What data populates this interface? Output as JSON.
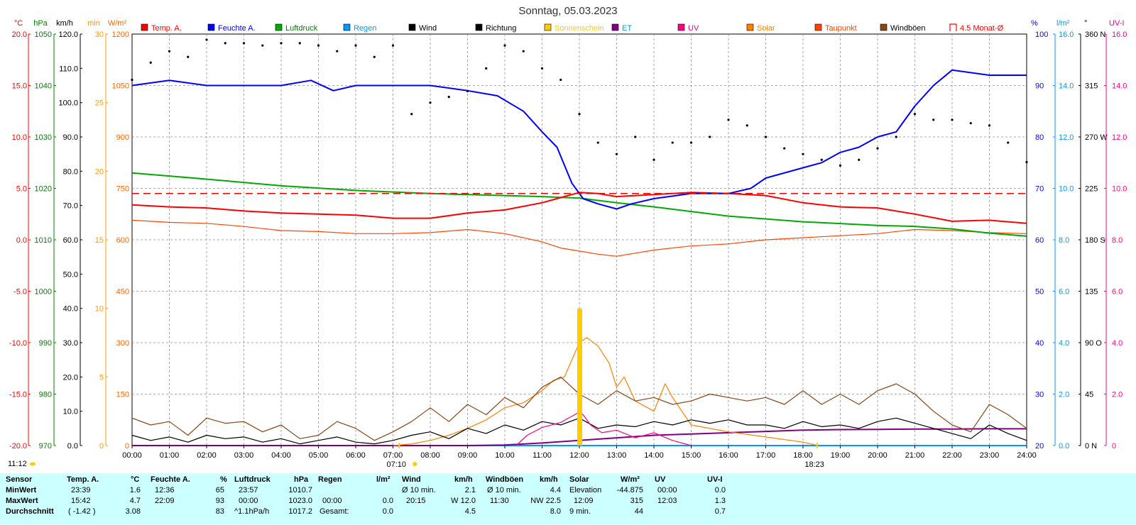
{
  "chart_data": {
    "type": "line",
    "title": "Sonntag, 05.03.2023",
    "x_ticks": [
      "00:00",
      "01:00",
      "02:00",
      "03:00",
      "04:00",
      "05:00",
      "06:00",
      "07:00",
      "08:00",
      "09:00",
      "10:00",
      "11:00",
      "12:00",
      "13:00",
      "14:00",
      "15:00",
      "16:00",
      "17:00",
      "18:00",
      "19:00",
      "20:00",
      "21:00",
      "22:00",
      "23:00",
      "24:00"
    ],
    "x_range_hours": [
      0,
      24
    ],
    "grid": true,
    "legend_position": "top",
    "sunrise_label": "07:10",
    "sunset_label": "18:23",
    "left_corner_time": "11:12",
    "axes": [
      {
        "unit": "°C",
        "color": "#ff0000",
        "range": [
          -20,
          20
        ],
        "ticks": [
          "20.0",
          "15.0",
          "10.0",
          "5.0",
          "0.0",
          "-5.0",
          "-10.0",
          "-15.0",
          "-20.0"
        ]
      },
      {
        "unit": "hPa",
        "color": "#008000",
        "range": [
          970,
          1050
        ],
        "ticks": [
          "1050",
          "1040",
          "1030",
          "1020",
          "1010",
          "1000",
          "990",
          "980",
          "970"
        ]
      },
      {
        "unit": "km/h",
        "color": "#000000",
        "range": [
          0,
          120
        ],
        "ticks": [
          "120.0",
          "110.0",
          "100.0",
          "90.0",
          "80.0",
          "70.0",
          "60.0",
          "50.0",
          "40.0",
          "30.0",
          "20.0",
          "10.0",
          "0.0"
        ]
      },
      {
        "unit": "min",
        "color": "#ff9900",
        "range": [
          0,
          30
        ],
        "ticks": [
          "30",
          "25",
          "20",
          "15",
          "10",
          "5",
          "0"
        ]
      },
      {
        "unit": "W/m²",
        "color": "#ff6600",
        "range": [
          0,
          1200
        ],
        "ticks": [
          "1200",
          "1050",
          "900",
          "750",
          "600",
          "450",
          "300",
          "150",
          "0"
        ]
      },
      {
        "unit": "%",
        "color": "#0000ff",
        "range": [
          20,
          100
        ],
        "ticks": [
          "100",
          "90",
          "80",
          "70",
          "60",
          "50",
          "40",
          "30",
          "20"
        ]
      },
      {
        "unit": "l/m²",
        "color": "#0099ff",
        "range": [
          0,
          16
        ],
        "ticks": [
          "16.0",
          "14.0",
          "12.0",
          "10.0",
          "8.0",
          "6.0",
          "4.0",
          "2.0",
          "0.0"
        ]
      },
      {
        "unit": "°",
        "color": "#000000",
        "range": [
          0,
          360
        ],
        "ticks": [
          "360 N",
          "315",
          "270 W",
          "225",
          "180 S",
          "135",
          "90 O",
          "45",
          "0 N"
        ]
      },
      {
        "unit": "UV-I",
        "color": "#ff0080",
        "range": [
          0,
          16
        ],
        "ticks": [
          "16.0",
          "14.0",
          "12.0",
          "10.0",
          "8.0",
          "6.0",
          "4.0",
          "2.0",
          "0"
        ]
      }
    ],
    "legend": [
      {
        "name": "Temp. A.",
        "color": "#ff0000",
        "text_color": "#ff0000"
      },
      {
        "name": "Feuchte A.",
        "color": "#0000ff",
        "text_color": "#0000ff"
      },
      {
        "name": "Luftdruck",
        "color": "#00aa00",
        "text_color": "#008000"
      },
      {
        "name": "Regen",
        "color": "#0099ff",
        "text_color": "#0099ff"
      },
      {
        "name": "Wind",
        "color": "#000000",
        "text_color": "#000000"
      },
      {
        "name": "Richtung",
        "color": "#000000",
        "text_color": "#000000"
      },
      {
        "name": "Sonnenschein",
        "color": "#ffcc00",
        "text_color": "#ffcc00"
      },
      {
        "name": "ET",
        "color": "#800080",
        "text_color": "#0099ff"
      },
      {
        "name": "UV",
        "color": "#ff0080",
        "text_color": "#ff0080"
      },
      {
        "name": "Solar",
        "color": "#ff8000",
        "text_color": "#ff8000"
      },
      {
        "name": "Taupunkt",
        "color": "#ff4400",
        "text_color": "#ff4400"
      },
      {
        "name": "Windböen",
        "color": "#8b4513",
        "text_color": "#000000"
      },
      {
        "name": "4.5 Monat-Ø",
        "color": "#ff0000",
        "text_color": "#ff0000"
      }
    ],
    "series": [
      {
        "name": "Temp. A.",
        "unit": "°C",
        "color": "#ff0000",
        "x": [
          0,
          1,
          2,
          3,
          4,
          5,
          6,
          7,
          8,
          9,
          10,
          11,
          11.5,
          12,
          12.5,
          13,
          14,
          15,
          16,
          17,
          18,
          19,
          20,
          21,
          22,
          23,
          24
        ],
        "y": [
          3.4,
          3.2,
          3.1,
          2.8,
          2.6,
          2.5,
          2.4,
          2.1,
          2.1,
          2.6,
          2.9,
          3.6,
          4.1,
          4.6,
          4.5,
          4.2,
          4.4,
          4.6,
          4.5,
          4.3,
          3.6,
          3.2,
          3.1,
          2.5,
          1.8,
          1.9,
          1.6
        ]
      },
      {
        "name": "Feuchte A.",
        "unit": "%",
        "color": "#0000ff",
        "x": [
          0,
          1,
          2,
          3,
          4,
          4.8,
          5.4,
          6,
          7,
          8,
          9,
          9.8,
          10.5,
          11,
          11.4,
          11.8,
          12.1,
          12.5,
          13,
          13.4,
          14,
          15,
          15.5,
          16,
          16.6,
          17,
          18,
          18.5,
          19,
          19.5,
          20,
          20.5,
          21,
          21.5,
          22,
          23,
          24
        ],
        "y": [
          90,
          91,
          90,
          90,
          90,
          91,
          89,
          90,
          90,
          90,
          89,
          88,
          85,
          81,
          78,
          71,
          68,
          67,
          66,
          67,
          68,
          69,
          69,
          69,
          70,
          72,
          74,
          75,
          77,
          78,
          80,
          81,
          86,
          90,
          93,
          92,
          92
        ]
      },
      {
        "name": "Luftdruck",
        "unit": "hPa",
        "color": "#00aa00",
        "x": [
          0,
          2,
          4,
          6,
          8,
          10,
          11,
          12,
          13,
          14,
          16,
          18,
          20,
          21,
          22,
          23,
          24
        ],
        "y": [
          1023.0,
          1021.8,
          1020.5,
          1019.6,
          1019.0,
          1018.6,
          1018.4,
          1018.1,
          1017.2,
          1016.4,
          1014.6,
          1013.5,
          1012.8,
          1012.6,
          1012.1,
          1011.3,
          1010.7
        ]
      },
      {
        "name": "Taupunkt",
        "unit": "°C",
        "color": "#ff4400",
        "x": [
          0,
          1,
          2,
          3,
          4,
          5,
          6,
          7,
          8,
          9,
          10,
          11,
          11.5,
          12,
          12.5,
          13,
          14,
          15,
          16,
          17,
          18,
          19,
          20,
          21,
          22,
          23,
          24
        ],
        "y": [
          1.9,
          1.7,
          1.6,
          1.3,
          0.9,
          0.8,
          0.6,
          0.6,
          0.7,
          1.0,
          0.6,
          -0.2,
          -0.8,
          -1.1,
          -1.4,
          -1.6,
          -1.0,
          -0.6,
          -0.4,
          0.0,
          0.2,
          0.4,
          0.6,
          1.0,
          0.9,
          0.7,
          0.6
        ]
      },
      {
        "name": "Solar",
        "unit": "W/m²",
        "color": "#ff8000",
        "x": [
          7.0,
          7.5,
          8,
          8.5,
          9,
          9.5,
          10,
          10.5,
          11,
          11.3,
          11.6,
          12,
          12.2,
          12.5,
          12.8,
          13.0,
          13.2,
          13.5,
          14,
          14.3,
          14.5,
          15,
          16,
          17,
          18,
          18.4
        ],
        "y": [
          0,
          5,
          15,
          30,
          50,
          75,
          110,
          125,
          160,
          190,
          200,
          300,
          315,
          290,
          240,
          170,
          200,
          130,
          100,
          180,
          140,
          60,
          40,
          25,
          10,
          0
        ]
      },
      {
        "name": "Wind",
        "unit": "km/h",
        "color": "#000000",
        "x": [
          0,
          0.5,
          1,
          1.5,
          2,
          2.5,
          3,
          3.5,
          4,
          4.5,
          5,
          5.5,
          6,
          6.5,
          7,
          7.5,
          8,
          8.5,
          9,
          9.5,
          10,
          10.5,
          11,
          11.5,
          12,
          12.5,
          13,
          13.5,
          14,
          14.5,
          15,
          15.5,
          16,
          16.5,
          17,
          17.5,
          18,
          18.5,
          19,
          19.5,
          20,
          20.5,
          21,
          21.5,
          22,
          22.5,
          23,
          23.5,
          24
        ],
        "y": [
          3.0,
          1.5,
          2.5,
          1.0,
          3.0,
          2.0,
          2.5,
          1.0,
          2.0,
          0.5,
          1.5,
          2.5,
          1.0,
          0.5,
          1.5,
          3.0,
          4.0,
          2.0,
          5.0,
          3.5,
          6.0,
          4.5,
          7.0,
          6.0,
          8.0,
          5.0,
          6.0,
          5.5,
          7.0,
          6.0,
          7.5,
          6.5,
          7.5,
          6.0,
          6.0,
          5.0,
          7.0,
          5.5,
          6.0,
          5.0,
          7.0,
          8.0,
          6.5,
          5.0,
          3.5,
          2.0,
          6.0,
          3.5,
          1.5
        ]
      },
      {
        "name": "Windböen",
        "unit": "km/h",
        "color": "#8b4513",
        "x": [
          0,
          0.5,
          1,
          1.5,
          2,
          2.5,
          3,
          3.5,
          4,
          4.5,
          5,
          5.5,
          6,
          6.5,
          7,
          7.5,
          8,
          8.5,
          9,
          9.5,
          10,
          10.5,
          11,
          11.5,
          12,
          12.5,
          13,
          13.5,
          14,
          14.5,
          15,
          15.5,
          16,
          16.5,
          17,
          17.5,
          18,
          18.5,
          19,
          19.5,
          20,
          20.5,
          21,
          21.5,
          22,
          22.5,
          23,
          23.5,
          24
        ],
        "y": [
          8.0,
          6.0,
          7.0,
          3.0,
          8.0,
          6.5,
          7.0,
          4.0,
          6.0,
          2.0,
          3.0,
          7.0,
          5.0,
          1.5,
          4.0,
          7.0,
          11.0,
          7.0,
          12.0,
          9.0,
          14.0,
          11.0,
          17.0,
          20.0,
          15.0,
          12.0,
          16.0,
          13.0,
          14.0,
          12.0,
          13.0,
          15.0,
          14.0,
          13.0,
          14.0,
          12.0,
          16.0,
          12.0,
          15.0,
          12.0,
          16.0,
          18.0,
          15.0,
          10.0,
          6.0,
          4.0,
          12.0,
          9.0,
          5.0
        ]
      },
      {
        "name": "Richtung",
        "unit": "°",
        "color": "#000000",
        "style": "dots",
        "x": [
          0,
          0.5,
          1,
          1.5,
          2,
          2.5,
          3,
          3.5,
          4,
          4.5,
          5,
          5.5,
          6,
          6.5,
          7,
          7.5,
          8,
          8.5,
          9,
          9.5,
          10,
          10.5,
          11,
          11.5,
          12,
          12.5,
          13,
          13.5,
          14,
          14.5,
          15,
          15.5,
          16,
          16.5,
          17,
          17.5,
          18,
          18.5,
          19,
          19.5,
          20,
          20.5,
          21,
          21.5,
          22,
          22.5,
          23,
          23.5,
          24
        ],
        "y": [
          320,
          335,
          345,
          340,
          355,
          352,
          352,
          350,
          352,
          352,
          350,
          345,
          350,
          340,
          350,
          290,
          300,
          305,
          310,
          330,
          350,
          345,
          330,
          320,
          290,
          265,
          255,
          270,
          250,
          265,
          265,
          270,
          285,
          280,
          270,
          260,
          255,
          250,
          245,
          250,
          260,
          270,
          290,
          285,
          285,
          282,
          280,
          265,
          248
        ]
      },
      {
        "name": "ET",
        "unit": "l/m²",
        "color": "#800080",
        "x": [
          0,
          9,
          10,
          11,
          12,
          13,
          14,
          15,
          16,
          17,
          18,
          19,
          20,
          21,
          22,
          23,
          24
        ],
        "y": [
          0,
          0,
          0.02,
          0.1,
          0.2,
          0.3,
          0.4,
          0.45,
          0.5,
          0.55,
          0.6,
          0.62,
          0.63,
          0.64,
          0.64,
          0.65,
          0.65
        ]
      },
      {
        "name": "UV",
        "unit": "UV-I",
        "color": "#ff0080",
        "x": [
          10.3,
          10.6,
          11,
          11.5,
          12,
          12.1,
          12.3,
          12.6,
          13,
          13.5,
          14,
          14.5,
          15
        ],
        "y": [
          0,
          0.4,
          0.7,
          0.9,
          1.3,
          1.2,
          0.8,
          0.5,
          0.6,
          0.3,
          0.5,
          0.2,
          0
        ]
      },
      {
        "name": "Sonnenschein",
        "unit": "min",
        "color": "#ffcc00",
        "style": "bar",
        "x": [
          12.0
        ],
        "y": [
          10
        ]
      },
      {
        "name": "Regen",
        "unit": "l/m²",
        "color": "#0099ff",
        "x": [
          0,
          24
        ],
        "y": [
          0,
          0
        ]
      },
      {
        "name": "4.5 Monat-Ø",
        "unit": "°C",
        "color": "#ff0000",
        "style": "dashed",
        "x": [
          0,
          24
        ],
        "y": [
          4.5,
          4.5
        ]
      }
    ]
  },
  "stats": {
    "header": {
      "sensor": "Sensor",
      "temp": "Temp. A.",
      "temp_unit": "°C",
      "hum": "Feuchte A.",
      "hum_unit": "%",
      "press": "Luftdruck",
      "press_unit": "hPa",
      "rain": "Regen",
      "rain_unit": "l/m²",
      "wind": "Wind",
      "wind_unit": "km/h",
      "gust": "Windböen",
      "gust_unit": "km/h",
      "solar": "Solar",
      "solar_unit": "W/m²",
      "uv": "UV",
      "uvi": "UV-I"
    },
    "rows": [
      {
        "label": "MinWert",
        "temp_t": "23:39",
        "temp_v": "1.6",
        "hum_t": "12:36",
        "hum_v": "65",
        "press_t": "23:57",
        "press_v": "1010.7",
        "rain_t": "",
        "rain_v": "",
        "wind_t": "Ø 10 min.",
        "wind_v": "2.1",
        "gust_t": "Ø 10 min.",
        "gust_v": "4.4",
        "solar_t": "Elevation",
        "solar_v": "-44.875",
        "uv_t": "00:00",
        "uv_v": "0.0"
      },
      {
        "label": "MaxWert",
        "temp_t": "15:42",
        "temp_v": "4.7",
        "hum_t": "22:09",
        "hum_v": "93",
        "press_t": "00:00",
        "press_v": "1023.0",
        "rain_t": "00:00",
        "rain_v": "0.0",
        "wind_t": "20:15",
        "wind_v": "W 12.0",
        "gust_t": "11:30",
        "gust_v": "NW 22.5",
        "solar_t": "12:09",
        "solar_v": "315",
        "uv_t": "12:03",
        "uv_v": "1.3"
      },
      {
        "label": "Durchschnitt",
        "temp_t": "( -1.42 )",
        "temp_v": "3.08",
        "hum_t": "",
        "hum_v": "83",
        "press_t": "^1.1hPa/h",
        "press_v": "1017.2",
        "rain_t": "Gesamt:",
        "rain_v": "0.0",
        "wind_t": "",
        "wind_v": "4.5",
        "gust_t": "",
        "gust_v": "8.0",
        "solar_t": "9 min.",
        "solar_v": "44",
        "uv_t": "",
        "uv_v": "0.7"
      }
    ]
  }
}
